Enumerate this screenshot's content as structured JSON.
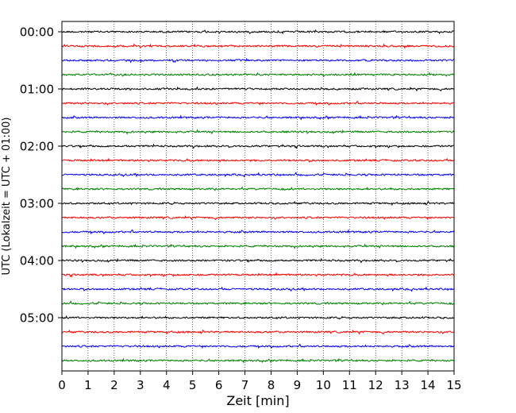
{
  "chart_data": {
    "type": "line",
    "subtype": "helicorder-seismogram",
    "xlabel": "Zeit  [min]",
    "ylabel": "UTC (Lokalzeit = UTC + 01:00)",
    "xlim": [
      0,
      15
    ],
    "x_ticks": [
      0,
      1,
      2,
      3,
      4,
      5,
      6,
      7,
      8,
      9,
      10,
      11,
      12,
      13,
      14,
      15
    ],
    "x_tick_labels": [
      "0",
      "1",
      "2",
      "3",
      "4",
      "5",
      "6",
      "7",
      "8",
      "9",
      "10",
      "11",
      "12",
      "13",
      "14",
      "15"
    ],
    "y_tick_labels": [
      "00:00",
      "01:00",
      "02:00",
      "03:00",
      "04:00",
      "05:00"
    ],
    "rows_per_hour": 4,
    "row_count": 24,
    "row_minutes": 15,
    "color_cycle": [
      "#000000",
      "#ff0000",
      "#0000ff",
      "#008000"
    ],
    "vertical_grid": "dotted",
    "amplitude": "small continuous noise on every trace"
  }
}
